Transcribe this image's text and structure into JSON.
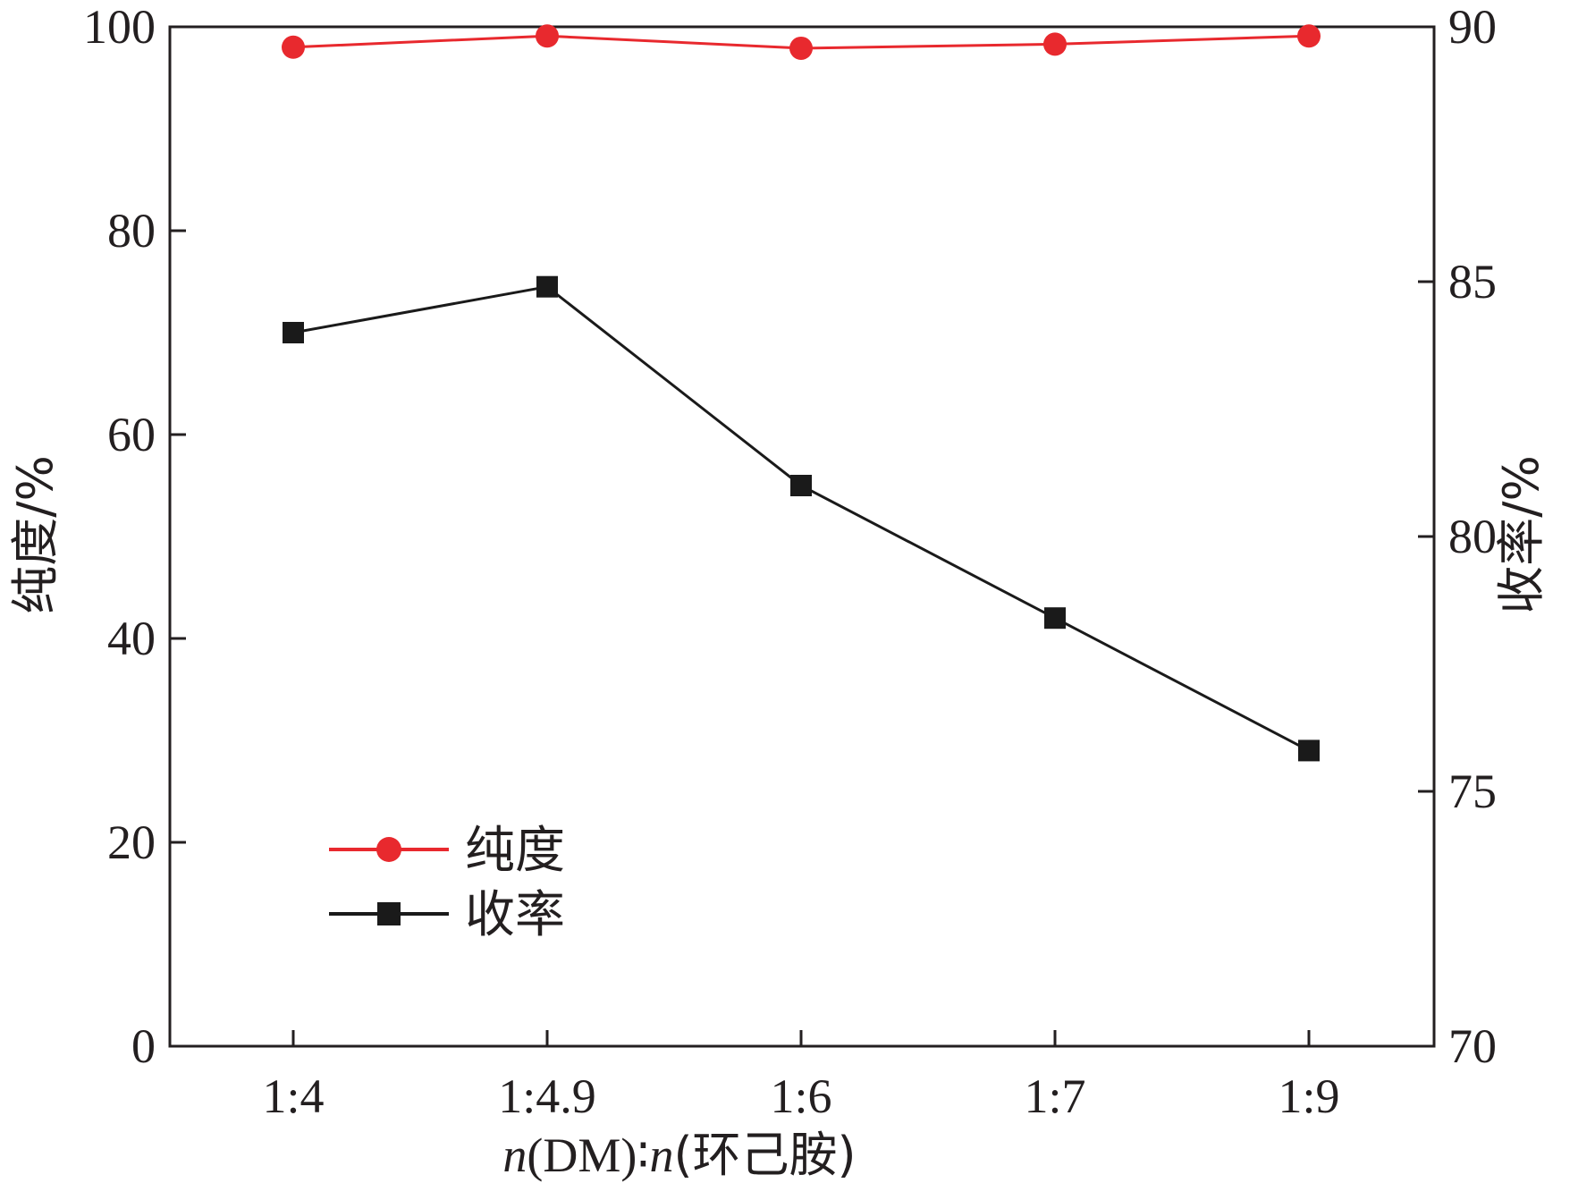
{
  "chart_data": {
    "type": "line",
    "dual_axis": true,
    "categories": [
      "1:4",
      "1:4.9",
      "1:6",
      "1:7",
      "1:9"
    ],
    "xlabel": {
      "n1": "n",
      "part1": "(DM)∶",
      "n2": "n",
      "part2": "(环己胺)"
    },
    "ylabel_left": "纯度/%",
    "ylabel_right": "收率/%",
    "ylim_left": [
      0,
      100
    ],
    "yticks_left": [
      "0",
      "20",
      "40",
      "60",
      "80",
      "100"
    ],
    "ylim_right": [
      70,
      90
    ],
    "yticks_right": [
      "70",
      "75",
      "80",
      "85",
      "90"
    ],
    "grid": false,
    "legend_position": "lower-left",
    "series": [
      {
        "name": "纯度",
        "axis": "left",
        "color": "#e8292e",
        "marker": "circle",
        "values": [
          98.0,
          99.1,
          97.9,
          98.3,
          99.1
        ]
      },
      {
        "name": "收率",
        "axis": "right",
        "color": "#1a1a1a",
        "marker": "square",
        "values": [
          84.0,
          84.9,
          81.0,
          78.4,
          75.8
        ]
      }
    ]
  }
}
